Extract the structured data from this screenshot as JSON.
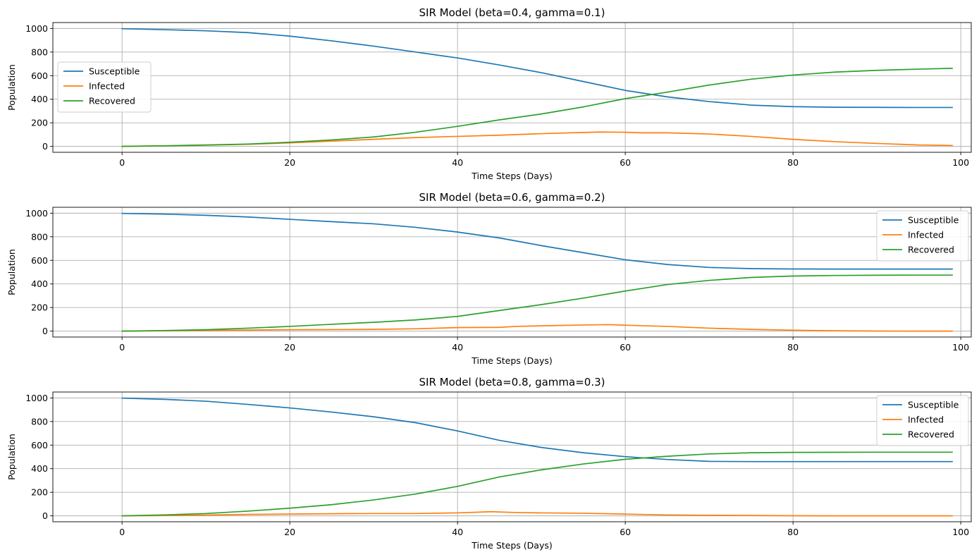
{
  "chart_data": [
    {
      "type": "line",
      "title": "SIR Model (beta=0.4, gamma=0.1)",
      "xlabel": "Time Steps (Days)",
      "ylabel": "Population",
      "xlim": [
        -8.25,
        101.25
      ],
      "ylim": [
        -50,
        1050
      ],
      "xticks": [
        0,
        20,
        40,
        60,
        80,
        100
      ],
      "yticks": [
        0,
        200,
        400,
        600,
        800,
        1000
      ],
      "grid": true,
      "legend_position": "center-left",
      "series": [
        {
          "name": "Susceptible",
          "color": "#1f77b4",
          "x": [
            0,
            5,
            10,
            15,
            20,
            25,
            30,
            35,
            40,
            45,
            50,
            55,
            60,
            65,
            70,
            75,
            80,
            85,
            90,
            95,
            99
          ],
          "y": [
            998,
            990,
            980,
            965,
            935,
            895,
            850,
            800,
            750,
            690,
            625,
            550,
            475,
            420,
            380,
            350,
            337,
            332,
            331,
            330,
            330
          ]
        },
        {
          "name": "Infected",
          "color": "#ff7f0e",
          "x": [
            0,
            5,
            10,
            15,
            20,
            25,
            30,
            35,
            40,
            45,
            50,
            55,
            57,
            60,
            62,
            65,
            70,
            75,
            80,
            85,
            90,
            95,
            99
          ],
          "y": [
            1,
            5,
            10,
            18,
            30,
            45,
            60,
            75,
            85,
            95,
            108,
            118,
            122,
            120,
            115,
            115,
            105,
            85,
            60,
            40,
            25,
            12,
            8
          ]
        },
        {
          "name": "Recovered",
          "color": "#2ca02c",
          "x": [
            0,
            5,
            10,
            15,
            20,
            25,
            30,
            35,
            40,
            45,
            50,
            55,
            60,
            65,
            70,
            75,
            80,
            85,
            90,
            95,
            99
          ],
          "y": [
            0,
            5,
            12,
            20,
            35,
            55,
            80,
            120,
            170,
            225,
            275,
            335,
            405,
            460,
            520,
            570,
            605,
            630,
            645,
            655,
            662
          ]
        }
      ]
    },
    {
      "type": "line",
      "title": "SIR Model (beta=0.6, gamma=0.2)",
      "xlabel": "Time Steps (Days)",
      "ylabel": "Population",
      "xlim": [
        -8.25,
        101.25
      ],
      "ylim": [
        -50,
        1050
      ],
      "xticks": [
        0,
        20,
        40,
        60,
        80,
        100
      ],
      "yticks": [
        0,
        200,
        400,
        600,
        800,
        1000
      ],
      "grid": true,
      "legend_position": "upper-right",
      "series": [
        {
          "name": "Susceptible",
          "color": "#1f77b4",
          "x": [
            0,
            5,
            10,
            15,
            20,
            25,
            30,
            35,
            40,
            45,
            50,
            55,
            60,
            65,
            70,
            75,
            80,
            85,
            90,
            95,
            99
          ],
          "y": [
            998,
            992,
            982,
            968,
            948,
            928,
            910,
            880,
            840,
            790,
            725,
            665,
            605,
            565,
            540,
            530,
            527,
            526,
            526,
            526,
            526
          ]
        },
        {
          "name": "Infected",
          "color": "#ff7f0e",
          "x": [
            0,
            5,
            10,
            15,
            20,
            25,
            30,
            35,
            40,
            45,
            47,
            50,
            55,
            58,
            60,
            65,
            70,
            75,
            80,
            85,
            90,
            95,
            99
          ],
          "y": [
            0,
            3,
            6,
            9,
            12,
            13,
            15,
            20,
            30,
            32,
            40,
            45,
            52,
            55,
            50,
            40,
            25,
            15,
            8,
            3,
            1,
            0,
            0
          ]
        },
        {
          "name": "Recovered",
          "color": "#2ca02c",
          "x": [
            0,
            5,
            10,
            15,
            20,
            25,
            30,
            35,
            40,
            45,
            50,
            55,
            60,
            65,
            70,
            75,
            80,
            85,
            90,
            95,
            99
          ],
          "y": [
            0,
            5,
            12,
            25,
            40,
            58,
            75,
            95,
            125,
            175,
            225,
            280,
            340,
            395,
            430,
            455,
            467,
            472,
            474,
            475,
            475
          ]
        }
      ]
    },
    {
      "type": "line",
      "title": "SIR Model (beta=0.8, gamma=0.3)",
      "xlabel": "Time Steps (Days)",
      "ylabel": "Population",
      "xlim": [
        -8.25,
        101.25
      ],
      "ylim": [
        -50,
        1050
      ],
      "xticks": [
        0,
        20,
        40,
        60,
        80,
        100
      ],
      "yticks": [
        0,
        200,
        400,
        600,
        800,
        1000
      ],
      "grid": true,
      "legend_position": "upper-right",
      "series": [
        {
          "name": "Susceptible",
          "color": "#1f77b4",
          "x": [
            0,
            5,
            10,
            15,
            20,
            25,
            30,
            35,
            40,
            45,
            50,
            55,
            60,
            65,
            70,
            75,
            80,
            85,
            90,
            95,
            99
          ],
          "y": [
            998,
            988,
            972,
            945,
            915,
            880,
            840,
            790,
            720,
            640,
            580,
            535,
            502,
            478,
            462,
            460,
            460,
            460,
            460,
            460,
            460
          ]
        },
        {
          "name": "Infected",
          "color": "#ff7f0e",
          "x": [
            0,
            5,
            10,
            15,
            20,
            25,
            30,
            35,
            40,
            44,
            47,
            50,
            55,
            60,
            65,
            70,
            75,
            80,
            85,
            90,
            95,
            99
          ],
          "y": [
            0,
            3,
            7,
            12,
            15,
            18,
            20,
            20,
            25,
            35,
            28,
            25,
            22,
            15,
            8,
            5,
            3,
            1,
            0,
            0,
            0,
            0
          ]
        },
        {
          "name": "Recovered",
          "color": "#2ca02c",
          "x": [
            0,
            5,
            10,
            15,
            20,
            25,
            30,
            35,
            40,
            45,
            50,
            55,
            60,
            65,
            70,
            75,
            80,
            85,
            90,
            95,
            99
          ],
          "y": [
            0,
            8,
            20,
            40,
            65,
            95,
            135,
            185,
            250,
            330,
            390,
            440,
            480,
            505,
            525,
            535,
            538,
            539,
            540,
            540,
            540
          ]
        }
      ]
    }
  ]
}
